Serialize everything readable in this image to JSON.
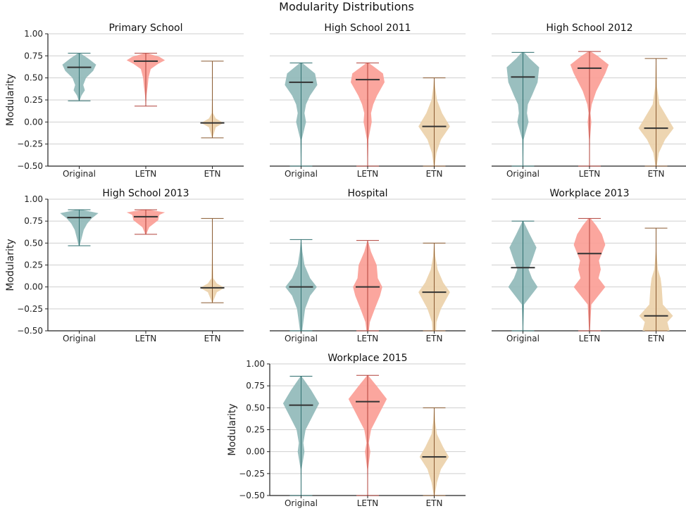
{
  "figure_title": "Modularity Distributions",
  "chart_data": [
    {
      "type": "violin",
      "title": "Primary School",
      "ylabel": "Modularity",
      "show_yticks": true,
      "ylim": [
        -0.5,
        1.0
      ],
      "yticks": [
        "1.00",
        "0.75",
        "0.50",
        "0.25",
        "0.00",
        "−0.25",
        "−0.50"
      ],
      "grid": "y",
      "categories": [
        "Original",
        "LETN",
        "ETN"
      ],
      "series": [
        {
          "min": 0.24,
          "max": 0.78,
          "median": 0.62,
          "density": [
            [
              0.24,
              0.02
            ],
            [
              0.3,
              0.1
            ],
            [
              0.36,
              0.25
            ],
            [
              0.42,
              0.18
            ],
            [
              0.5,
              0.3
            ],
            [
              0.58,
              0.62
            ],
            [
              0.65,
              0.75
            ],
            [
              0.72,
              0.4
            ],
            [
              0.78,
              0.05
            ]
          ]
        },
        {
          "min": 0.18,
          "max": 0.78,
          "median": 0.69,
          "density": [
            [
              0.18,
              0.01
            ],
            [
              0.3,
              0.03
            ],
            [
              0.4,
              0.08
            ],
            [
              0.5,
              0.12
            ],
            [
              0.6,
              0.22
            ],
            [
              0.66,
              0.55
            ],
            [
              0.7,
              0.85
            ],
            [
              0.74,
              0.6
            ],
            [
              0.78,
              0.05
            ]
          ]
        },
        {
          "min": -0.18,
          "max": 0.69,
          "median": -0.01,
          "density": [
            [
              -0.18,
              0.01
            ],
            [
              -0.06,
              0.15
            ],
            [
              -0.01,
              0.5
            ],
            [
              0.04,
              0.15
            ],
            [
              0.1,
              0.03
            ],
            [
              0.3,
              0.01
            ],
            [
              0.69,
              0.005
            ]
          ]
        }
      ]
    },
    {
      "type": "violin",
      "title": "High School 2011",
      "ylabel": "",
      "show_yticks": false,
      "ylim": [
        -0.5,
        1.0
      ],
      "yticks": [
        "1.00",
        "0.75",
        "0.50",
        "0.25",
        "0.00",
        "−0.25",
        "−0.50"
      ],
      "grid": "y",
      "categories": [
        "Original",
        "LETN",
        "ETN"
      ],
      "series": [
        {
          "min": -0.5,
          "max": 0.67,
          "median": 0.45,
          "density": [
            [
              -0.5,
              0.01
            ],
            [
              -0.2,
              0.03
            ],
            [
              0.0,
              0.22
            ],
            [
              0.1,
              0.15
            ],
            [
              0.2,
              0.22
            ],
            [
              0.3,
              0.4
            ],
            [
              0.42,
              0.72
            ],
            [
              0.55,
              0.62
            ],
            [
              0.67,
              0.05
            ]
          ]
        },
        {
          "min": -0.5,
          "max": 0.67,
          "median": 0.48,
          "density": [
            [
              -0.5,
              0.01
            ],
            [
              -0.2,
              0.03
            ],
            [
              0.0,
              0.18
            ],
            [
              0.1,
              0.15
            ],
            [
              0.2,
              0.25
            ],
            [
              0.3,
              0.42
            ],
            [
              0.45,
              0.75
            ],
            [
              0.55,
              0.68
            ],
            [
              0.67,
              0.05
            ]
          ]
        },
        {
          "min": -0.5,
          "max": 0.5,
          "median": -0.05,
          "density": [
            [
              -0.5,
              0.02
            ],
            [
              -0.35,
              0.1
            ],
            [
              -0.2,
              0.3
            ],
            [
              -0.05,
              0.7
            ],
            [
              0.1,
              0.35
            ],
            [
              0.25,
              0.12
            ],
            [
              0.4,
              0.04
            ],
            [
              0.5,
              0.01
            ]
          ]
        }
      ]
    },
    {
      "type": "violin",
      "title": "High School 2012",
      "ylabel": "",
      "show_yticks": false,
      "ylim": [
        -0.5,
        1.0
      ],
      "yticks": [
        "1.00",
        "0.75",
        "0.50",
        "0.25",
        "0.00",
        "−0.25",
        "−0.50"
      ],
      "grid": "y",
      "categories": [
        "Original",
        "LETN",
        "ETN"
      ],
      "series": [
        {
          "min": -0.5,
          "max": 0.79,
          "median": 0.51,
          "density": [
            [
              -0.5,
              0.01
            ],
            [
              -0.2,
              0.03
            ],
            [
              0.0,
              0.25
            ],
            [
              0.1,
              0.18
            ],
            [
              0.2,
              0.22
            ],
            [
              0.3,
              0.4
            ],
            [
              0.45,
              0.65
            ],
            [
              0.62,
              0.72
            ],
            [
              0.72,
              0.3
            ],
            [
              0.79,
              0.05
            ]
          ]
        },
        {
          "min": -0.5,
          "max": 0.8,
          "median": 0.61,
          "density": [
            [
              -0.5,
              0.01
            ],
            [
              -0.2,
              0.02
            ],
            [
              0.0,
              0.08
            ],
            [
              0.1,
              0.04
            ],
            [
              0.2,
              0.1
            ],
            [
              0.35,
              0.3
            ],
            [
              0.55,
              0.7
            ],
            [
              0.65,
              0.85
            ],
            [
              0.75,
              0.35
            ],
            [
              0.8,
              0.05
            ]
          ]
        },
        {
          "min": -0.5,
          "max": 0.72,
          "median": -0.07,
          "density": [
            [
              -0.5,
              0.03
            ],
            [
              -0.35,
              0.12
            ],
            [
              -0.2,
              0.4
            ],
            [
              -0.07,
              0.78
            ],
            [
              0.05,
              0.5
            ],
            [
              0.2,
              0.15
            ],
            [
              0.4,
              0.04
            ],
            [
              0.72,
              0.01
            ]
          ]
        }
      ]
    },
    {
      "type": "violin",
      "title": "High School 2013",
      "ylabel": "Modularity",
      "show_yticks": true,
      "ylim": [
        -0.5,
        1.0
      ],
      "yticks": [
        "1.00",
        "0.75",
        "0.50",
        "0.25",
        "0.00",
        "−0.25",
        "−0.50"
      ],
      "grid": "y",
      "categories": [
        "Original",
        "LETN",
        "ETN"
      ],
      "series": [
        {
          "min": 0.47,
          "max": 0.88,
          "median": 0.79,
          "density": [
            [
              0.47,
              0.02
            ],
            [
              0.55,
              0.1
            ],
            [
              0.65,
              0.2
            ],
            [
              0.72,
              0.35
            ],
            [
              0.78,
              0.55
            ],
            [
              0.84,
              0.85
            ],
            [
              0.88,
              0.1
            ]
          ]
        },
        {
          "min": 0.6,
          "max": 0.88,
          "median": 0.8,
          "density": [
            [
              0.6,
              0.02
            ],
            [
              0.68,
              0.15
            ],
            [
              0.76,
              0.55
            ],
            [
              0.82,
              0.6
            ],
            [
              0.85,
              0.85
            ],
            [
              0.88,
              0.1
            ]
          ]
        },
        {
          "min": -0.18,
          "max": 0.78,
          "median": -0.01,
          "density": [
            [
              -0.18,
              0.01
            ],
            [
              -0.06,
              0.2
            ],
            [
              -0.01,
              0.55
            ],
            [
              0.04,
              0.2
            ],
            [
              0.1,
              0.04
            ],
            [
              0.4,
              0.01
            ],
            [
              0.78,
              0.005
            ]
          ]
        }
      ]
    },
    {
      "type": "violin",
      "title": "Hospital",
      "ylabel": "",
      "show_yticks": false,
      "ylim": [
        -0.5,
        1.0
      ],
      "yticks": [
        "1.00",
        "0.75",
        "0.50",
        "0.25",
        "0.00",
        "−0.25",
        "−0.50"
      ],
      "grid": "y",
      "categories": [
        "Original",
        "LETN",
        "ETN"
      ],
      "series": [
        {
          "min": -0.5,
          "max": 0.54,
          "median": 0.0,
          "density": [
            [
              -0.5,
              0.05
            ],
            [
              -0.4,
              0.1
            ],
            [
              -0.25,
              0.18
            ],
            [
              -0.1,
              0.4
            ],
            [
              0.0,
              0.7
            ],
            [
              0.1,
              0.4
            ],
            [
              0.25,
              0.15
            ],
            [
              0.4,
              0.06
            ],
            [
              0.54,
              0.01
            ]
          ]
        },
        {
          "min": -0.5,
          "max": 0.53,
          "median": 0.0,
          "density": [
            [
              -0.5,
              0.05
            ],
            [
              -0.4,
              0.1
            ],
            [
              -0.25,
              0.32
            ],
            [
              -0.1,
              0.55
            ],
            [
              0.0,
              0.65
            ],
            [
              0.1,
              0.45
            ],
            [
              0.25,
              0.4
            ],
            [
              0.4,
              0.15
            ],
            [
              0.53,
              0.01
            ]
          ]
        },
        {
          "min": -0.5,
          "max": 0.5,
          "median": -0.06,
          "density": [
            [
              -0.5,
              0.08
            ],
            [
              -0.4,
              0.1
            ],
            [
              -0.25,
              0.3
            ],
            [
              -0.06,
              0.7
            ],
            [
              0.05,
              0.4
            ],
            [
              0.2,
              0.15
            ],
            [
              0.35,
              0.05
            ],
            [
              0.5,
              0.01
            ]
          ]
        }
      ]
    },
    {
      "type": "violin",
      "title": "Workplace 2013",
      "ylabel": "",
      "show_yticks": false,
      "ylim": [
        -0.5,
        1.0
      ],
      "yticks": [
        "1.00",
        "0.75",
        "0.50",
        "0.25",
        "0.00",
        "−0.25",
        "−0.50"
      ],
      "grid": "y",
      "categories": [
        "Original",
        "LETN",
        "ETN"
      ],
      "series": [
        {
          "min": -0.5,
          "max": 0.75,
          "median": 0.22,
          "density": [
            [
              -0.5,
              0.01
            ],
            [
              -0.2,
              0.05
            ],
            [
              0.0,
              0.65
            ],
            [
              0.1,
              0.4
            ],
            [
              0.2,
              0.25
            ],
            [
              0.3,
              0.4
            ],
            [
              0.45,
              0.6
            ],
            [
              0.6,
              0.3
            ],
            [
              0.75,
              0.02
            ]
          ]
        },
        {
          "min": -0.5,
          "max": 0.78,
          "median": 0.38,
          "density": [
            [
              -0.5,
              0.02
            ],
            [
              -0.2,
              0.08
            ],
            [
              0.0,
              0.7
            ],
            [
              0.1,
              0.4
            ],
            [
              0.2,
              0.5
            ],
            [
              0.3,
              0.42
            ],
            [
              0.48,
              0.7
            ],
            [
              0.6,
              0.55
            ],
            [
              0.7,
              0.3
            ],
            [
              0.78,
              0.05
            ]
          ]
        },
        {
          "min": -0.5,
          "max": 0.67,
          "median": -0.33,
          "density": [
            [
              -0.5,
              0.6
            ],
            [
              -0.4,
              0.5
            ],
            [
              -0.33,
              0.75
            ],
            [
              -0.2,
              0.3
            ],
            [
              0.0,
              0.25
            ],
            [
              0.1,
              0.2
            ],
            [
              0.2,
              0.08
            ],
            [
              0.4,
              0.02
            ],
            [
              0.67,
              0.005
            ]
          ]
        }
      ]
    },
    {
      "type": "violin",
      "title": "Workplace 2015",
      "ylabel": "Modularity",
      "show_yticks": true,
      "ylim": [
        -0.5,
        1.0
      ],
      "yticks": [
        "1.00",
        "0.75",
        "0.50",
        "0.25",
        "0.00",
        "−0.25",
        "−0.50"
      ],
      "grid": "y",
      "categories": [
        "Original",
        "LETN",
        "ETN"
      ],
      "series": [
        {
          "min": -0.5,
          "max": 0.86,
          "median": 0.53,
          "density": [
            [
              -0.5,
              0.01
            ],
            [
              -0.2,
              0.02
            ],
            [
              0.0,
              0.15
            ],
            [
              0.1,
              0.1
            ],
            [
              0.25,
              0.2
            ],
            [
              0.4,
              0.5
            ],
            [
              0.55,
              0.8
            ],
            [
              0.7,
              0.45
            ],
            [
              0.86,
              0.02
            ]
          ]
        },
        {
          "min": -0.5,
          "max": 0.87,
          "median": 0.57,
          "density": [
            [
              -0.5,
              0.01
            ],
            [
              -0.2,
              0.02
            ],
            [
              0.0,
              0.12
            ],
            [
              0.1,
              0.05
            ],
            [
              0.25,
              0.15
            ],
            [
              0.4,
              0.45
            ],
            [
              0.6,
              0.85
            ],
            [
              0.75,
              0.4
            ],
            [
              0.87,
              0.02
            ]
          ]
        },
        {
          "min": -0.5,
          "max": 0.5,
          "median": -0.06,
          "density": [
            [
              -0.5,
              0.02
            ],
            [
              -0.35,
              0.12
            ],
            [
              -0.2,
              0.3
            ],
            [
              -0.06,
              0.65
            ],
            [
              0.05,
              0.4
            ],
            [
              0.2,
              0.12
            ],
            [
              0.35,
              0.04
            ],
            [
              0.5,
              0.01
            ]
          ]
        }
      ]
    }
  ],
  "colors": {
    "Original": {
      "fill": "#8fb8b8",
      "line": "#2e6e6e"
    },
    "LETN": {
      "fill": "#fb9c94",
      "line": "#b0413a"
    },
    "ETN": {
      "fill": "#ebd0a9",
      "line": "#8a5a30"
    },
    "median": "#333333",
    "grid": "#cfcfcf",
    "axis": "#222222"
  }
}
